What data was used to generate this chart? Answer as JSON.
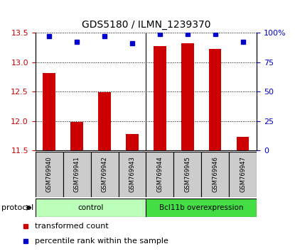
{
  "title": "GDS5180 / ILMN_1239370",
  "samples": [
    "GSM769940",
    "GSM769941",
    "GSM769942",
    "GSM769943",
    "GSM769944",
    "GSM769945",
    "GSM769946",
    "GSM769947"
  ],
  "transformed_counts": [
    12.82,
    11.99,
    12.49,
    11.78,
    13.27,
    13.32,
    13.22,
    11.73
  ],
  "percentile_ranks": [
    97,
    92,
    97,
    91,
    99,
    99,
    99,
    92
  ],
  "ylim_left": [
    11.5,
    13.5
  ],
  "yticks_left": [
    11.5,
    12.0,
    12.5,
    13.0,
    13.5
  ],
  "yticks_right": [
    0,
    25,
    50,
    75,
    100
  ],
  "ylim_right": [
    0,
    100
  ],
  "bar_color": "#cc0000",
  "dot_color": "#0000cc",
  "groups": [
    {
      "label": "control",
      "indices": [
        0,
        1,
        2,
        3
      ],
      "color": "#bbffbb"
    },
    {
      "label": "Bcl11b overexpression",
      "indices": [
        4,
        5,
        6,
        7
      ],
      "color": "#44dd44"
    }
  ],
  "protocol_label": "protocol",
  "legend_bar_label": "transformed count",
  "legend_dot_label": "percentile rank within the sample",
  "bar_color_legend": "#cc0000",
  "dot_color_legend": "#0000cc",
  "tick_label_color_left": "#cc0000",
  "tick_label_color_right": "#0000cc",
  "sample_box_color": "#cccccc",
  "title_fontsize": 10,
  "axis_fontsize": 8,
  "legend_fontsize": 8,
  "bar_width": 0.45
}
